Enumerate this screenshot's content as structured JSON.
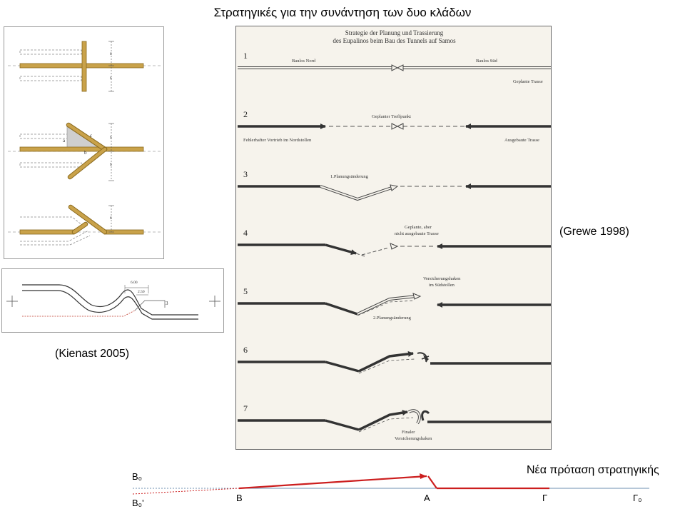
{
  "title": "Στρατηγικές για την συνάντηση των δυο κλάδων",
  "kienast_caption": "(Kienast 2005)",
  "grewe_caption": "(Grewe 1998)",
  "grewe_figure": {
    "heading_line1": "Strategie der Planung und Trassierung",
    "heading_line2": "des Eupalinos beim Bau des Tunnels auf Samos",
    "steps": [
      "1",
      "2",
      "3",
      "4",
      "5",
      "6",
      "7"
    ],
    "labels": {
      "baulos_nord": "Baulos Nord",
      "baulos_sued": "Baulos Süd",
      "geplante_trasse": "Geplante Trasse",
      "geplanter_treffpunkt": "Geplanter Treffpunkt",
      "fehlerhafter_vortrieb": "Fehlerhafter Vortrieb im Nordstollen",
      "ausgebaute_trasse": "Ausgebaute Trasse",
      "planungsaenderung_1": "1.Planungsänderung",
      "geplante_nicht_1": "Geplante, aber",
      "geplante_nicht_2": "nicht ausgebaute Trasse",
      "versicherung_1": "Versicherungshaken",
      "versicherung_2": "im Südstollen",
      "planungsaenderung_2": "2.Planungsänderung",
      "finaler_1": "Finaler",
      "finaler_2": "Versicherungshaken"
    }
  },
  "kienast_figure": {
    "labels": {
      "s": "s",
      "a": "a",
      "b": "b",
      "c": "c",
      "d1": "6.00",
      "d2": "2.50",
      "d3": "3"
    }
  },
  "new_strategy": {
    "label": "Νέα πρόταση στρατηγικής",
    "points": {
      "b0": "B₀",
      "b0p": "B₀'",
      "b": "B",
      "a": "A",
      "g": "Γ",
      "g0": "Γ₀"
    }
  },
  "colors": {
    "tunnel_gold": "#c9a24a",
    "tunnel_gold_dark": "#8a6a1e",
    "new_strategy_red": "#cc1e1e",
    "baseline_blue": "#6e8fb0",
    "scan_background": "#f6f3ec"
  }
}
